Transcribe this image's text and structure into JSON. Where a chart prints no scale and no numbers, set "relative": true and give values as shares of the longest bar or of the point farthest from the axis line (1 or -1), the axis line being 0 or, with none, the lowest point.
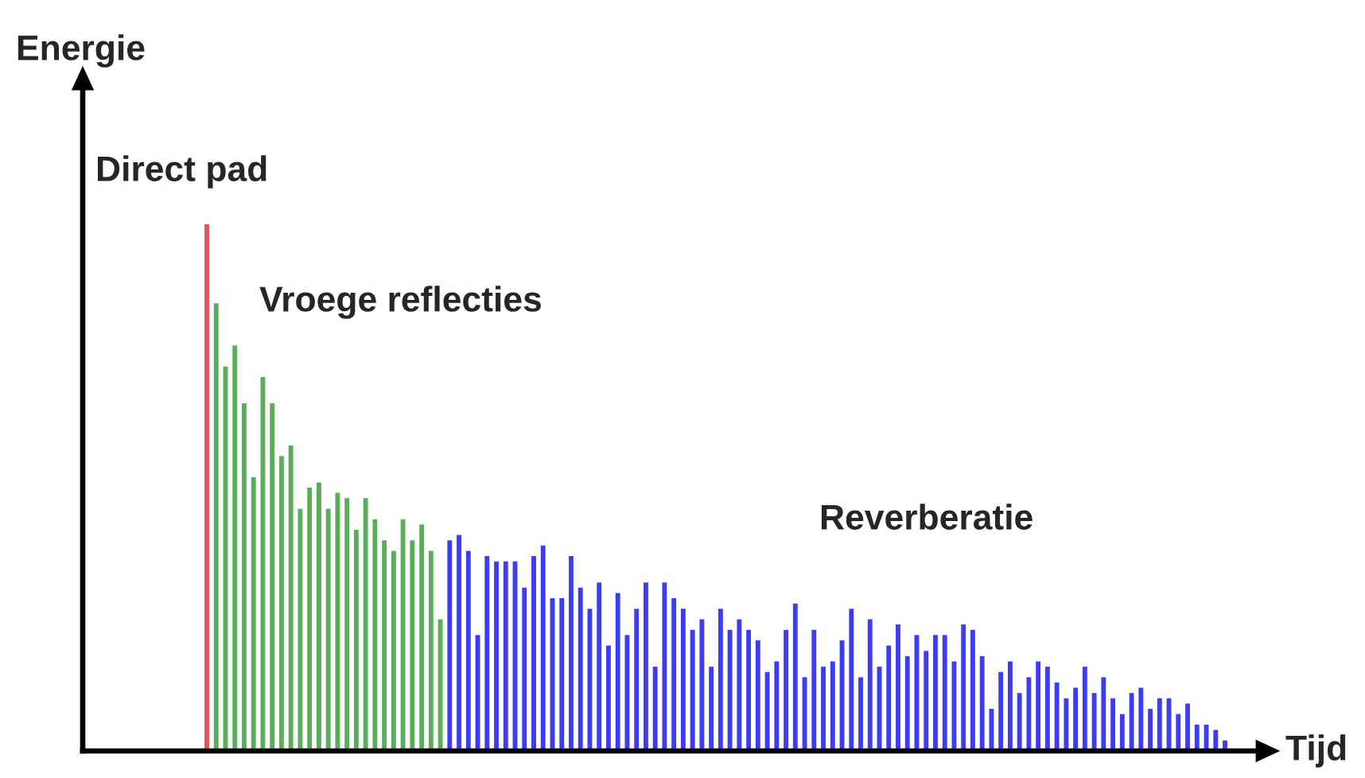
{
  "chart_data": {
    "type": "bar",
    "relative": true,
    "xlabel": "Tijd",
    "ylabel": "Energie",
    "annotations": [
      "Direct pad",
      "Vroege reflecties",
      "Reverberatie"
    ],
    "categories": [
      null,
      null,
      null,
      null,
      null,
      null,
      null,
      null,
      null,
      null,
      null,
      null,
      null,
      null,
      null,
      null,
      null,
      null,
      null,
      null,
      null,
      null,
      null,
      null,
      null,
      null,
      null,
      null,
      null,
      null,
      null,
      null,
      null,
      null,
      null,
      null,
      null,
      null,
      null,
      null,
      null,
      null,
      null,
      null,
      null,
      null,
      null,
      null,
      null,
      null,
      null,
      null,
      null,
      null,
      null,
      null,
      null,
      null,
      null,
      null,
      null,
      null,
      null,
      null,
      null,
      null,
      null,
      null,
      null,
      null,
      null,
      null,
      null,
      null,
      null,
      null,
      null,
      null,
      null,
      null,
      null,
      null,
      null,
      null,
      null,
      null,
      null,
      null,
      null,
      null,
      null,
      null,
      null,
      null,
      null,
      null,
      null,
      null,
      null,
      null,
      null,
      null,
      null,
      null,
      null,
      null,
      null,
      null,
      null,
      null
    ],
    "values": [
      1.0,
      0.85,
      0.73,
      0.77,
      0.66,
      0.52,
      0.71,
      0.66,
      0.56,
      0.58,
      0.46,
      0.5,
      0.51,
      0.46,
      0.49,
      0.48,
      0.42,
      0.48,
      0.44,
      0.4,
      0.38,
      0.44,
      0.4,
      0.43,
      0.38,
      0.25,
      0.4,
      0.41,
      0.38,
      0.22,
      0.37,
      0.36,
      0.36,
      0.36,
      0.31,
      0.37,
      0.39,
      0.29,
      0.29,
      0.37,
      0.31,
      0.27,
      0.32,
      0.2,
      0.3,
      0.22,
      0.27,
      0.32,
      0.16,
      0.32,
      0.29,
      0.27,
      0.23,
      0.25,
      0.16,
      0.27,
      0.23,
      0.25,
      0.23,
      0.21,
      0.15,
      0.17,
      0.23,
      0.28,
      0.14,
      0.23,
      0.16,
      0.17,
      0.21,
      0.27,
      0.14,
      0.25,
      0.16,
      0.2,
      0.24,
      0.18,
      0.22,
      0.19,
      0.22,
      0.22,
      0.17,
      0.24,
      0.23,
      0.18,
      0.08,
      0.15,
      0.17,
      0.11,
      0.14,
      0.17,
      0.16,
      0.13,
      0.1,
      0.12,
      0.16,
      0.11,
      0.14,
      0.1,
      0.07,
      0.11,
      0.12,
      0.08,
      0.1,
      0.1,
      0.07,
      0.09,
      0.05,
      0.05,
      0.04,
      0.02
    ],
    "colors": [
      "#e8505a",
      "#5aad5a",
      "#5aad5a",
      "#5aad5a",
      "#5aad5a",
      "#5aad5a",
      "#5aad5a",
      "#5aad5a",
      "#5aad5a",
      "#5aad5a",
      "#5aad5a",
      "#5aad5a",
      "#5aad5a",
      "#5aad5a",
      "#5aad5a",
      "#5aad5a",
      "#5aad5a",
      "#5aad5a",
      "#5aad5a",
      "#5aad5a",
      "#5aad5a",
      "#5aad5a",
      "#5aad5a",
      "#5aad5a",
      "#5aad5a",
      "#5aad5a",
      "#3c3cf5",
      "#3c3cf5",
      "#3c3cf5",
      "#3c3cf5",
      "#3c3cf5",
      "#3c3cf5",
      "#3c3cf5",
      "#3c3cf5",
      "#3c3cf5",
      "#3c3cf5",
      "#3c3cf5",
      "#3c3cf5",
      "#3c3cf5",
      "#3c3cf5",
      "#3c3cf5",
      "#3c3cf5",
      "#3c3cf5",
      "#3c3cf5",
      "#3c3cf5",
      "#3c3cf5",
      "#3c3cf5",
      "#3c3cf5",
      "#3c3cf5",
      "#3c3cf5",
      "#3c3cf5",
      "#3c3cf5",
      "#3c3cf5",
      "#3c3cf5",
      "#3c3cf5",
      "#3c3cf5",
      "#3c3cf5",
      "#3c3cf5",
      "#3c3cf5",
      "#3c3cf5",
      "#3c3cf5",
      "#3c3cf5",
      "#3c3cf5",
      "#3c3cf5",
      "#3c3cf5",
      "#3c3cf5",
      "#3c3cf5",
      "#3c3cf5",
      "#3c3cf5",
      "#3c3cf5",
      "#3c3cf5",
      "#3c3cf5",
      "#3c3cf5",
      "#3c3cf5",
      "#3c3cf5",
      "#3c3cf5",
      "#3c3cf5",
      "#3c3cf5",
      "#3c3cf5",
      "#3c3cf5",
      "#3c3cf5",
      "#3c3cf5",
      "#3c3cf5",
      "#3c3cf5",
      "#3c3cf5",
      "#3c3cf5",
      "#3c3cf5",
      "#3c3cf5",
      "#3c3cf5",
      "#3c3cf5",
      "#3c3cf5",
      "#3c3cf5",
      "#3c3cf5",
      "#3c3cf5",
      "#3c3cf5",
      "#3c3cf5",
      "#3c3cf5",
      "#3c3cf5",
      "#3c3cf5",
      "#3c3cf5",
      "#3c3cf5",
      "#3c3cf5",
      "#3c3cf5",
      "#3c3cf5",
      "#3c3cf5",
      "#3c3cf5",
      "#3c3cf5",
      "#3c3cf5",
      "#3c3cf5",
      "#3c3cf5"
    ]
  }
}
